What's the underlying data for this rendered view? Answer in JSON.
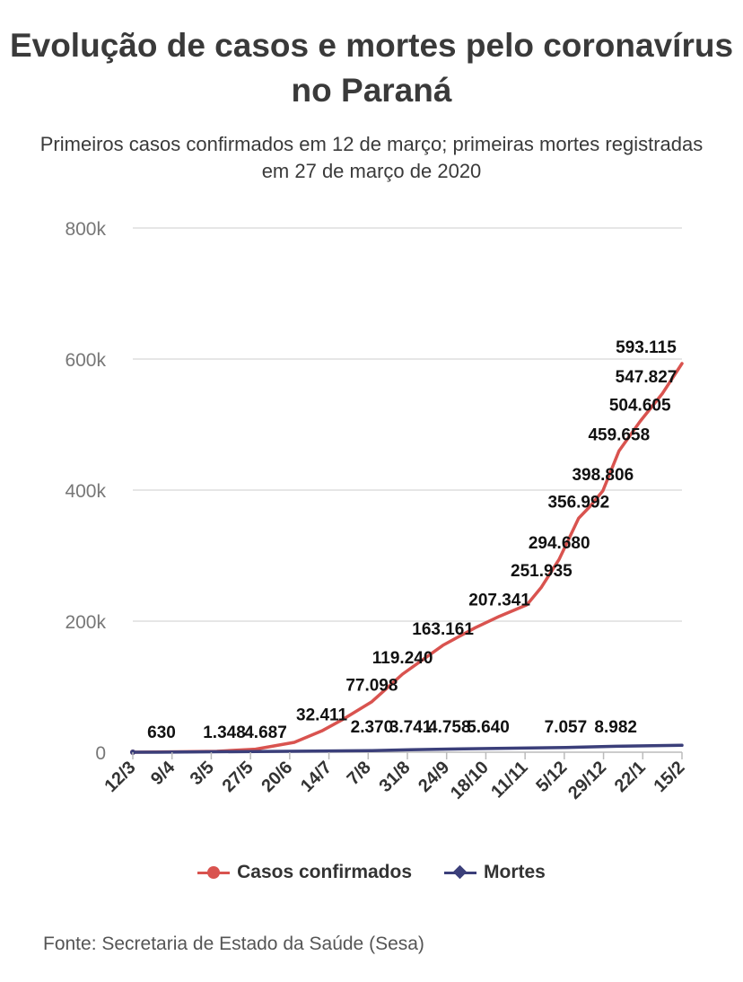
{
  "title": "Evolução de casos e mortes pelo coronavírus no Paraná",
  "subtitle": "Primeiros casos confirmados em 12 de março; primeiras mortes registradas em 27 de março de 2020",
  "source": "Fonte: Secretaria de Estado da Saúde (Sesa)",
  "colors": {
    "cases": "#d9534f",
    "deaths": "#3b3f7a",
    "grid": "#dddddd",
    "axis": "#bbbbbb"
  },
  "chart_data": {
    "type": "line",
    "title": "Evolução de casos e mortes pelo coronavírus no Paraná",
    "categories": [
      "12/3",
      "9/4",
      "3/5",
      "27/5",
      "20/6",
      "14/7",
      "7/8",
      "31/8",
      "24/9",
      "18/10",
      "11/11",
      "5/12",
      "29/12",
      "22/1",
      "15/2"
    ],
    "ylim": [
      0,
      800000
    ],
    "yticks": [
      {
        "value": 0,
        "label": "0"
      },
      {
        "value": 200000,
        "label": "200k"
      },
      {
        "value": 400000,
        "label": "400k"
      },
      {
        "value": 600000,
        "label": "600k"
      },
      {
        "value": 800000,
        "label": "800k"
      }
    ],
    "grid": true,
    "legend_position": "bottom",
    "series": [
      {
        "name": "Casos confirmados",
        "points": [
          [
            "2020-03-12",
            0
          ],
          [
            "2020-04-09",
            630
          ],
          [
            "2020-05-03",
            1348
          ],
          [
            "2020-05-27",
            4687
          ],
          [
            "2020-06-20",
            15000
          ],
          [
            "2020-07-07",
            32411
          ],
          [
            "2020-07-20",
            50000
          ],
          [
            "2020-08-07",
            77098
          ],
          [
            "2020-08-26",
            119240
          ],
          [
            "2020-09-20",
            163161
          ],
          [
            "2020-10-10",
            190000
          ],
          [
            "2020-10-25",
            207341
          ],
          [
            "2020-11-11",
            225000
          ],
          [
            "2020-11-20",
            251935
          ],
          [
            "2020-12-01",
            294680
          ],
          [
            "2020-12-13",
            356992
          ],
          [
            "2020-12-20",
            375000
          ],
          [
            "2020-12-28",
            398806
          ],
          [
            "2021-01-07",
            459658
          ],
          [
            "2021-01-20",
            504605
          ],
          [
            "2021-02-03",
            547827
          ],
          [
            "2021-02-15",
            593115
          ]
        ],
        "labels": [
          {
            "date": "2020-04-09",
            "value": 630,
            "text": "630"
          },
          {
            "date": "2020-05-03",
            "value": 1348,
            "text": "1.348"
          },
          {
            "date": "2020-05-27",
            "value": 4687,
            "text": "4.687"
          },
          {
            "date": "2020-07-07",
            "value": 32411,
            "text": "32.411"
          },
          {
            "date": "2020-08-07",
            "value": 77098,
            "text": "77.098"
          },
          {
            "date": "2020-08-26",
            "value": 119240,
            "text": "119.240"
          },
          {
            "date": "2020-09-20",
            "value": 163161,
            "text": "163.161"
          },
          {
            "date": "2020-10-25",
            "value": 207341,
            "text": "207.341"
          },
          {
            "date": "2020-11-20",
            "value": 251935,
            "text": "251.935"
          },
          {
            "date": "2020-12-01",
            "value": 294680,
            "text": "294.680"
          },
          {
            "date": "2020-12-13",
            "value": 356992,
            "text": "356.992"
          },
          {
            "date": "2020-12-28",
            "value": 398806,
            "text": "398.806"
          },
          {
            "date": "2021-01-07",
            "value": 459658,
            "text": "459.658"
          },
          {
            "date": "2021-01-20",
            "value": 504605,
            "text": "504.605"
          },
          {
            "date": "2021-02-03",
            "value": 547827,
            "text": "547.827"
          },
          {
            "date": "2021-02-15",
            "value": 593115,
            "text": "593.115"
          }
        ]
      },
      {
        "name": "Mortes",
        "points": [
          [
            "2020-03-12",
            0
          ],
          [
            "2020-03-27",
            1
          ],
          [
            "2020-08-07",
            2370
          ],
          [
            "2020-08-31",
            3741
          ],
          [
            "2020-09-24",
            4758
          ],
          [
            "2020-10-18",
            5640
          ],
          [
            "2020-12-05",
            7057
          ],
          [
            "2021-01-05",
            8982
          ],
          [
            "2021-02-15",
            10500
          ]
        ],
        "labels": [
          {
            "date": "2020-08-07",
            "value": 2370,
            "text": "2.370"
          },
          {
            "date": "2020-08-31",
            "value": 3741,
            "text": "3.741"
          },
          {
            "date": "2020-09-24",
            "value": 4758,
            "text": "4.758"
          },
          {
            "date": "2020-10-18",
            "value": 5640,
            "text": "5.640"
          },
          {
            "date": "2020-12-05",
            "value": 7057,
            "text": "7.057"
          },
          {
            "date": "2021-01-05",
            "value": 8982,
            "text": "8.982"
          }
        ]
      }
    ]
  }
}
